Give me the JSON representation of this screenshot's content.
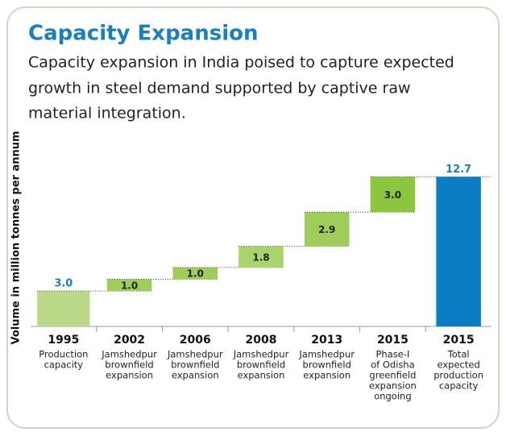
{
  "chart_data": {
    "type": "waterfall",
    "title": "Capacity Expansion",
    "subtitle": [
      "Capacity expansion in India poised to capture expected",
      "growth in steel demand supported by captive raw",
      "material integration."
    ],
    "y_label": "Volume in million tonnes per annum",
    "categories": [
      "1995",
      "2002",
      "2006",
      "2008",
      "2013",
      "2015",
      "2015"
    ],
    "descriptions": [
      [
        "Production",
        "capacity"
      ],
      [
        "Jamshedpur",
        "brownfield",
        "expansion"
      ],
      [
        "Jamshedpur",
        "brownfield",
        "expansion"
      ],
      [
        "Jamshedpur",
        "brownfield",
        "expansion"
      ],
      [
        "Jamshedpur",
        "brownfield",
        "expansion"
      ],
      [
        "Phase-I",
        "of Odisha",
        "greenfield",
        "expansion",
        "ongoing"
      ],
      [
        "Total",
        "expected",
        "production",
        "capacity"
      ]
    ],
    "values": [
      3,
      1,
      1,
      1.8,
      2.9,
      3,
      12.7
    ],
    "value_labels": [
      "3.0",
      "1.0",
      "1.0",
      "1.8",
      "2.9",
      "3.0",
      "12.7"
    ],
    "measure": [
      "absolute",
      "relative",
      "relative",
      "relative",
      "relative",
      "relative",
      "total"
    ],
    "colors": [
      "#bcd98a",
      "#9fcd5a",
      "#9fcd5a",
      "#a9d46a",
      "#9fcd5a",
      "#8cc63f",
      "#0b7dc4"
    ],
    "ylim": [
      0,
      13
    ]
  }
}
